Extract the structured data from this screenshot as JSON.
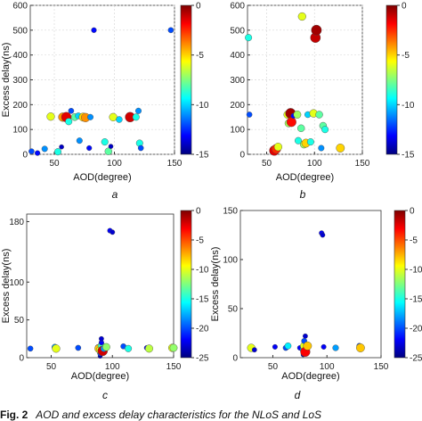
{
  "caption": {
    "fig": "Fig. 2",
    "text": "AOD and excess delay characteristics for the NLoS and LoS"
  },
  "colors": {
    "grid": "#d9d9d9",
    "axis": "#333333",
    "marker_edge": "#444444"
  },
  "colorbar_stops": [
    "#00007f",
    "#0000ff",
    "#007fff",
    "#00ffff",
    "#7fff7f",
    "#ffff00",
    "#ff7f00",
    "#ff0000",
    "#7f0000"
  ],
  "chart_data": [
    {
      "type": "scatter",
      "panel_label": "a",
      "title": "",
      "xlabel": "AOD(degree)",
      "ylabel": "Excess delay(ns)",
      "xlim": [
        30,
        150
      ],
      "ylim": [
        0,
        600
      ],
      "xticks": [
        50,
        100,
        150
      ],
      "yticks": [
        0,
        100,
        200,
        300,
        400,
        500,
        600
      ],
      "clim": [
        -15,
        0
      ],
      "cticks": [
        0,
        -5,
        -10,
        -15
      ],
      "grid": true,
      "points": [
        {
          "x": 31,
          "y": 12,
          "c": -12
        },
        {
          "x": 36,
          "y": 5,
          "c": -13
        },
        {
          "x": 42,
          "y": 22,
          "c": -11
        },
        {
          "x": 47,
          "y": 152,
          "c": -6
        },
        {
          "x": 53,
          "y": 10,
          "c": -9
        },
        {
          "x": 56,
          "y": 30,
          "c": -14
        },
        {
          "x": 57,
          "y": 150,
          "c": -4
        },
        {
          "x": 60,
          "y": 150,
          "c": -1.5
        },
        {
          "x": 62,
          "y": 132,
          "c": -9
        },
        {
          "x": 64,
          "y": 175,
          "c": -12
        },
        {
          "x": 67,
          "y": 150,
          "c": -8
        },
        {
          "x": 70,
          "y": 155,
          "c": -10
        },
        {
          "x": 71,
          "y": 55,
          "c": -11
        },
        {
          "x": 74,
          "y": 150,
          "c": -5
        },
        {
          "x": 76,
          "y": 148,
          "c": -4
        },
        {
          "x": 80,
          "y": 150,
          "c": -11
        },
        {
          "x": 79,
          "y": 25,
          "c": -13
        },
        {
          "x": 83,
          "y": 500,
          "c": -13
        },
        {
          "x": 92,
          "y": 50,
          "c": -9
        },
        {
          "x": 95,
          "y": 12,
          "c": -8
        },
        {
          "x": 97,
          "y": 32,
          "c": -14
        },
        {
          "x": 99,
          "y": 150,
          "c": -6
        },
        {
          "x": 104,
          "y": 140,
          "c": -10
        },
        {
          "x": 113,
          "y": 150,
          "c": -1.2
        },
        {
          "x": 118,
          "y": 150,
          "c": -9
        },
        {
          "x": 120,
          "y": 175,
          "c": -11
        },
        {
          "x": 121,
          "y": 45,
          "c": -9
        },
        {
          "x": 122,
          "y": 25,
          "c": -12
        },
        {
          "x": 147,
          "y": 500,
          "c": -12
        }
      ]
    },
    {
      "type": "scatter",
      "panel_label": "b",
      "title": "",
      "xlabel": "AOD(degree)",
      "ylabel": "",
      "xlim": [
        30,
        150
      ],
      "ylim": [
        0,
        600
      ],
      "xticks": [
        50,
        100,
        150
      ],
      "yticks": [
        0,
        100,
        200,
        300,
        400,
        500,
        600
      ],
      "clim": [
        -15,
        0
      ],
      "cticks": [
        0,
        -5,
        -10,
        -15
      ],
      "grid": true,
      "points": [
        {
          "x": 31,
          "y": 470,
          "c": -9
        },
        {
          "x": 32,
          "y": 160,
          "c": -12
        },
        {
          "x": 56,
          "y": 10,
          "c": -13
        },
        {
          "x": 58,
          "y": 15,
          "c": -1.5
        },
        {
          "x": 60,
          "y": 22,
          "c": -2.5
        },
        {
          "x": 62,
          "y": 30,
          "c": -6
        },
        {
          "x": 72,
          "y": 160,
          "c": -6
        },
        {
          "x": 73,
          "y": 125,
          "c": -7
        },
        {
          "x": 75,
          "y": 165,
          "c": -0.5
        },
        {
          "x": 76,
          "y": 130,
          "c": -2
        },
        {
          "x": 78,
          "y": 155,
          "c": -13
        },
        {
          "x": 82,
          "y": 160,
          "c": -7
        },
        {
          "x": 83,
          "y": 55,
          "c": -9
        },
        {
          "x": 86,
          "y": 105,
          "c": -8
        },
        {
          "x": 87,
          "y": 555,
          "c": -6
        },
        {
          "x": 89,
          "y": 40,
          "c": -7
        },
        {
          "x": 91,
          "y": 45,
          "c": -5
        },
        {
          "x": 93,
          "y": 160,
          "c": -10
        },
        {
          "x": 96,
          "y": 50,
          "c": -9
        },
        {
          "x": 99,
          "y": 165,
          "c": -6
        },
        {
          "x": 101,
          "y": 470,
          "c": -1
        },
        {
          "x": 102,
          "y": 500,
          "c": -0.5
        },
        {
          "x": 105,
          "y": 160,
          "c": -8
        },
        {
          "x": 107,
          "y": 25,
          "c": -11
        },
        {
          "x": 109,
          "y": 115,
          "c": -8
        },
        {
          "x": 111,
          "y": 100,
          "c": -9
        },
        {
          "x": 127,
          "y": 25,
          "c": -5
        }
      ]
    },
    {
      "type": "scatter",
      "panel_label": "c",
      "title": "",
      "xlabel": "AOD(degree)",
      "ylabel": "Excess delay(ns)",
      "xlim": [
        30,
        150
      ],
      "ylim": [
        0,
        190
      ],
      "xticks": [
        50,
        100,
        150
      ],
      "yticks": [
        0,
        50,
        100,
        180
      ],
      "clim": [
        -25,
        0
      ],
      "cticks": [
        0,
        -5,
        -10,
        -15,
        -20,
        -25
      ],
      "grid": false,
      "points": [
        {
          "x": 33,
          "y": 12,
          "c": -20
        },
        {
          "x": 53,
          "y": 14,
          "c": -18
        },
        {
          "x": 54,
          "y": 12,
          "c": -10
        },
        {
          "x": 72,
          "y": 13,
          "c": -20
        },
        {
          "x": 88,
          "y": 14,
          "c": -22
        },
        {
          "x": 89,
          "y": 12,
          "c": -8
        },
        {
          "x": 90,
          "y": 2,
          "c": -24
        },
        {
          "x": 90,
          "y": 6,
          "c": -20
        },
        {
          "x": 90,
          "y": 10,
          "c": -10
        },
        {
          "x": 91,
          "y": 16,
          "c": -14
        },
        {
          "x": 91,
          "y": 20,
          "c": -22
        },
        {
          "x": 91,
          "y": 25,
          "c": -23
        },
        {
          "x": 92,
          "y": 9,
          "c": -2
        },
        {
          "x": 93,
          "y": 12,
          "c": -18
        },
        {
          "x": 95,
          "y": 14,
          "c": -12
        },
        {
          "x": 98,
          "y": 168,
          "c": -22
        },
        {
          "x": 100,
          "y": 166,
          "c": -23
        },
        {
          "x": 109,
          "y": 15,
          "c": -20
        },
        {
          "x": 113,
          "y": 12,
          "c": -15
        },
        {
          "x": 128,
          "y": 13,
          "c": -22
        },
        {
          "x": 130,
          "y": 12,
          "c": -11
        },
        {
          "x": 149,
          "y": 13,
          "c": -10
        },
        {
          "x": 150,
          "y": 13,
          "c": -12
        }
      ]
    },
    {
      "type": "scatter",
      "panel_label": "d",
      "title": "",
      "xlabel": "AOD(degree)",
      "ylabel": "Excess delay(ns)",
      "xlim": [
        20,
        150
      ],
      "ylim": [
        0,
        150
      ],
      "xticks": [
        50,
        100,
        150
      ],
      "yticks": [
        0,
        50,
        100,
        150
      ],
      "clim": [
        -25,
        0
      ],
      "cticks": [
        0,
        -5,
        -10,
        -15,
        -20,
        -25
      ],
      "grid": false,
      "points": [
        {
          "x": 30,
          "y": 10,
          "c": -10
        },
        {
          "x": 33,
          "y": 8,
          "c": -23
        },
        {
          "x": 52,
          "y": 11,
          "c": -22
        },
        {
          "x": 62,
          "y": 10,
          "c": -20
        },
        {
          "x": 64,
          "y": 12,
          "c": -16
        },
        {
          "x": 75,
          "y": 10,
          "c": -22
        },
        {
          "x": 78,
          "y": 3,
          "c": -24
        },
        {
          "x": 78,
          "y": 8,
          "c": -17
        },
        {
          "x": 79,
          "y": 12,
          "c": -10
        },
        {
          "x": 79,
          "y": 17,
          "c": -20
        },
        {
          "x": 80,
          "y": 22,
          "c": -23
        },
        {
          "x": 80,
          "y": 6,
          "c": -3
        },
        {
          "x": 82,
          "y": 12,
          "c": -8
        },
        {
          "x": 95,
          "y": 127,
          "c": -22
        },
        {
          "x": 96,
          "y": 125,
          "c": -23
        },
        {
          "x": 97,
          "y": 11,
          "c": -22
        },
        {
          "x": 108,
          "y": 10,
          "c": -18
        },
        {
          "x": 130,
          "y": 12,
          "c": -20
        },
        {
          "x": 131,
          "y": 10,
          "c": -8
        }
      ]
    }
  ]
}
